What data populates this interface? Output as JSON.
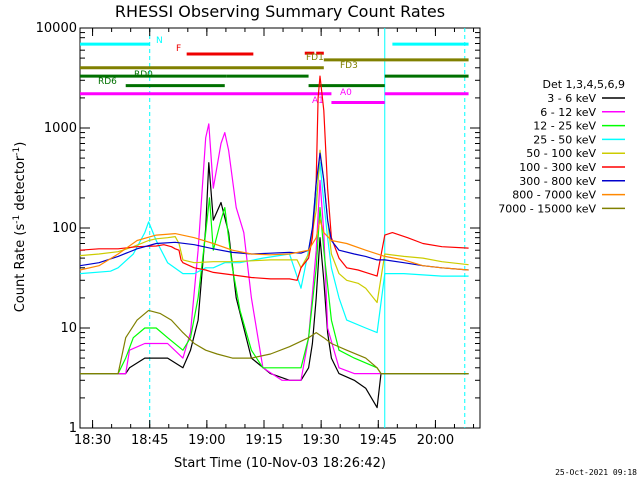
{
  "chart_data": {
    "type": "line",
    "title": "RHESSI Observing Summary Count Rates",
    "xlabel": "Start Time (10-Nov-03 18:26:42)",
    "ylabel": "Count Rate (s",
    "ylabel_sup1": "-1",
    "ylabel_mid": " detector",
    "ylabel_sup2": "-1",
    "ylabel_end": ")",
    "yscale": "log",
    "xlim": [
      0,
      105
    ],
    "ylim": [
      1,
      10000
    ],
    "x_unit": "minutes since 18:26:42",
    "x_ticks": [
      {
        "x": 3.3,
        "label": "18:30"
      },
      {
        "x": 18.3,
        "label": "18:45"
      },
      {
        "x": 33.3,
        "label": "19:00"
      },
      {
        "x": 48.3,
        "label": "19:15"
      },
      {
        "x": 63.3,
        "label": "19:30"
      },
      {
        "x": 78.3,
        "label": "19:45"
      },
      {
        "x": 93.3,
        "label": "20:00"
      }
    ],
    "y_ticks": [
      {
        "y": 1,
        "label": "1"
      },
      {
        "y": 10,
        "label": "10"
      },
      {
        "y": 100,
        "label": "100"
      },
      {
        "y": 1000,
        "label": "1000"
      },
      {
        "y": 10000,
        "label": "10000"
      }
    ],
    "legend_title": "Det 1,3,4,5,6,9",
    "legend_placement": "right",
    "timestamp": "25-Oct-2021 09:18",
    "series": [
      {
        "name": "3 - 6 keV",
        "color": "#000000",
        "x": [
          0,
          12,
          13,
          17,
          23,
          27,
          29,
          31,
          33,
          33.8,
          35,
          37,
          39,
          41,
          45,
          50,
          55,
          58,
          60,
          61,
          62,
          63,
          64,
          65,
          66,
          68,
          72,
          75,
          78,
          79,
          81,
          85,
          90,
          95,
          102
        ],
        "y": [
          3.5,
          3.5,
          4,
          5,
          5,
          4,
          6,
          12,
          100,
          450,
          120,
          180,
          90,
          20,
          5,
          3.5,
          3,
          3,
          4,
          7,
          20,
          80,
          30,
          9,
          5,
          3.5,
          3,
          2.5,
          1.6,
          3.5,
          3.5,
          3.5,
          3.5,
          3.5,
          3.5
        ]
      },
      {
        "name": "6 - 12 keV",
        "color": "#ff00ff",
        "x": [
          0,
          12,
          13,
          17,
          23,
          27,
          29,
          31,
          33,
          33.8,
          35,
          37,
          38,
          39,
          41,
          43,
          45,
          48,
          53,
          58,
          60,
          62,
          63,
          64,
          65,
          68,
          72,
          76,
          78,
          79,
          85,
          95,
          102
        ],
        "y": [
          3.5,
          3.5,
          6,
          7,
          7,
          5,
          9,
          60,
          800,
          1100,
          250,
          700,
          900,
          600,
          160,
          90,
          20,
          4,
          3,
          3,
          8,
          60,
          300,
          90,
          10,
          4,
          3.5,
          3.5,
          3.5,
          3.5,
          3.5,
          3.5,
          3.5
        ]
      },
      {
        "name": "12 - 25 keV",
        "color": "#00ff00",
        "x": [
          0,
          10,
          12,
          14,
          17,
          20,
          23,
          27,
          29,
          31,
          33,
          34,
          35,
          37,
          38,
          40,
          42,
          45,
          48,
          53,
          58,
          60,
          62,
          63,
          64,
          66,
          68,
          72,
          78,
          79,
          85,
          95,
          102
        ],
        "y": [
          3.5,
          3.5,
          5,
          8,
          10,
          10,
          8,
          6,
          8,
          20,
          90,
          200,
          60,
          120,
          160,
          40,
          15,
          6,
          4,
          4,
          4,
          8,
          40,
          160,
          60,
          12,
          6,
          5,
          4,
          3.5,
          3.5,
          3.5,
          3.5
        ]
      },
      {
        "name": "25 - 50 keV",
        "color": "#00ffff",
        "x": [
          0,
          8,
          10,
          14,
          17,
          18,
          20,
          23,
          27,
          30,
          33,
          35,
          38,
          42,
          48,
          55,
          58,
          60,
          61,
          62,
          63,
          64,
          65,
          66,
          68,
          70,
          75,
          78,
          80,
          85,
          90,
          95,
          102
        ],
        "y": [
          35,
          37,
          40,
          55,
          90,
          115,
          75,
          45,
          35,
          35,
          40,
          40,
          45,
          45,
          50,
          55,
          25,
          60,
          100,
          200,
          450,
          180,
          80,
          40,
          20,
          12,
          10,
          9,
          35,
          35,
          34,
          33,
          33
        ]
      },
      {
        "name": "50 - 100 keV",
        "color": "#cccc00",
        "x": [
          0,
          5,
          10,
          14,
          18,
          20,
          23,
          25,
          26,
          27,
          30,
          35,
          40,
          45,
          50,
          54,
          57,
          58,
          60,
          62,
          63,
          64,
          65,
          66,
          68,
          70,
          73,
          75,
          78,
          80,
          85,
          90,
          95,
          102
        ],
        "y": [
          53,
          55,
          58,
          65,
          75,
          78,
          80,
          82,
          70,
          48,
          45,
          46,
          46,
          47,
          48,
          48,
          48,
          40,
          55,
          150,
          600,
          300,
          120,
          55,
          35,
          30,
          28,
          25,
          18,
          55,
          52,
          50,
          46,
          43
        ]
      },
      {
        "name": "100 - 300 keV",
        "color": "#ff0000",
        "x": [
          0,
          5,
          10,
          15,
          20,
          22,
          24,
          25,
          26,
          26.5,
          27,
          30,
          33,
          35,
          40,
          45,
          50,
          55,
          57,
          58,
          60,
          61,
          62,
          62.5,
          63,
          64,
          65,
          66,
          68,
          70,
          73,
          75,
          78,
          80,
          82,
          86,
          90,
          95,
          102
        ],
        "y": [
          60,
          62,
          62,
          65,
          66,
          68,
          65,
          62,
          60,
          48,
          45,
          40,
          38,
          36,
          34,
          32,
          31,
          31,
          30,
          40,
          50,
          80,
          300,
          2000,
          3300,
          1500,
          250,
          80,
          50,
          40,
          38,
          36,
          33,
          85,
          90,
          80,
          70,
          65,
          63
        ]
      },
      {
        "name": "300 - 800 keV",
        "color": "#0000cc",
        "x": [
          0,
          5,
          10,
          15,
          20,
          25,
          30,
          35,
          40,
          45,
          50,
          55,
          58,
          60,
          61,
          62,
          63,
          64,
          65,
          66,
          68,
          72,
          75,
          78,
          80,
          85,
          90,
          95,
          102
        ],
        "y": [
          42,
          45,
          52,
          62,
          70,
          72,
          68,
          62,
          57,
          55,
          56,
          57,
          56,
          60,
          100,
          280,
          560,
          300,
          120,
          75,
          60,
          55,
          52,
          48,
          48,
          45,
          42,
          40,
          38
        ]
      },
      {
        "name": "800 - 7000 keV",
        "color": "#ff8800",
        "x": [
          0,
          5,
          10,
          15,
          20,
          25,
          30,
          35,
          40,
          45,
          50,
          55,
          60,
          62,
          63,
          64,
          66,
          70,
          75,
          80,
          85,
          90,
          95,
          102
        ],
        "y": [
          38,
          42,
          55,
          75,
          85,
          88,
          80,
          70,
          60,
          55,
          54,
          55,
          60,
          80,
          120,
          90,
          75,
          70,
          60,
          52,
          48,
          42,
          40,
          38
        ]
      },
      {
        "name": "7000 - 15000 keV",
        "color": "#808000",
        "x": [
          0,
          10,
          12,
          15,
          18,
          21,
          24,
          27,
          30,
          33,
          36,
          40,
          45,
          50,
          55,
          60,
          62,
          64,
          66,
          70,
          75,
          78,
          79,
          85,
          95,
          102
        ],
        "y": [
          3.5,
          3.5,
          8,
          12,
          15,
          14,
          12,
          9,
          7,
          6,
          5.5,
          5,
          5,
          5.5,
          6.5,
          8,
          9,
          8,
          7,
          6,
          5,
          4,
          3.5,
          3.5,
          3.5,
          3.5
        ]
      }
    ],
    "status_bars": [
      {
        "label": "N",
        "color": "#00ffff",
        "y": 6900,
        "segments": [
          [
            0,
            18.3
          ],
          [
            82,
            102
          ]
        ]
      },
      {
        "label": "F",
        "color": "#ee0000",
        "y": 5500,
        "segments": [
          [
            28,
            45.5
          ]
        ]
      },
      {
        "label": "FD1",
        "color": "#ee0000",
        "y": 5600,
        "segments": [
          [
            59,
            61.5
          ],
          [
            62,
            64
          ]
        ]
      },
      {
        "label": "FD3",
        "color": "#808000",
        "y": 4800,
        "segments": [
          [
            64,
            102
          ]
        ]
      },
      {
        "label": "",
        "color": "#808000",
        "y": 4000,
        "segments": [
          [
            0,
            64
          ]
        ]
      },
      {
        "label": "RD0",
        "color": "#007000",
        "y": 3300,
        "segments": [
          [
            0,
            38.5
          ],
          [
            38.5,
            60
          ],
          [
            80,
            102
          ]
        ]
      },
      {
        "label": "RD6",
        "color": "#007000",
        "y": 2650,
        "segments": [
          [
            12,
            38
          ],
          [
            60,
            80
          ]
        ]
      },
      {
        "label": "A1",
        "color": "#ff00ff",
        "y": 1800,
        "segments": [
          [
            66,
            80
          ]
        ]
      },
      {
        "label": "A0",
        "color": "#ff00ff",
        "y": 2200,
        "segments": [
          [
            0,
            66
          ],
          [
            80,
            102
          ]
        ]
      }
    ],
    "vertical_markers": [
      {
        "x": 18.3,
        "style": "dashed",
        "color": "#00ffff"
      },
      {
        "x": 80,
        "style": "solid",
        "color": "#00ffff"
      },
      {
        "x": 101,
        "style": "dashed",
        "color": "#00ffff"
      }
    ]
  }
}
